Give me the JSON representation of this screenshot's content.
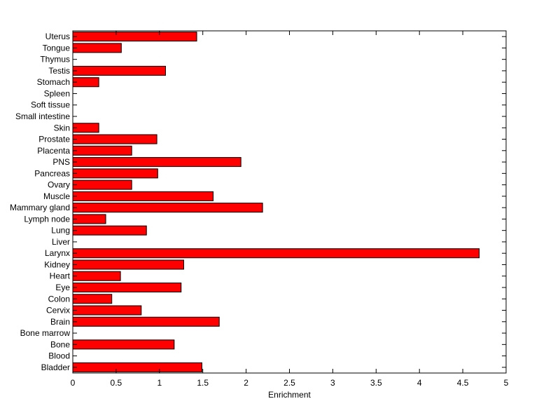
{
  "chart_data": {
    "type": "bar",
    "orientation": "horizontal",
    "title": "",
    "xlabel": "Enrichment",
    "ylabel": "",
    "xlim": [
      0,
      5
    ],
    "xticks": [
      0,
      0.5,
      1,
      1.5,
      2,
      2.5,
      3,
      3.5,
      4,
      4.5,
      5
    ],
    "xtick_labels": [
      "0",
      "0.5",
      "1",
      "1.5",
      "2",
      "2.5",
      "3",
      "3.5",
      "4",
      "4.5",
      "5"
    ],
    "grid": false,
    "bar_color": "#ff0000",
    "bar_edge_color": "#000000",
    "categories": [
      "Bladder",
      "Blood",
      "Bone",
      "Bone marrow",
      "Brain",
      "Cervix",
      "Colon",
      "Eye",
      "Heart",
      "Kidney",
      "Larynx",
      "Liver",
      "Lung",
      "Lymph node",
      "Mammary gland",
      "Muscle",
      "Ovary",
      "Pancreas",
      "PNS",
      "Placenta",
      "Prostate",
      "Skin",
      "Small intestine",
      "Soft tissue",
      "Spleen",
      "Stomach",
      "Testis",
      "Thymus",
      "Tongue",
      "Uterus"
    ],
    "values": [
      1.49,
      0,
      1.17,
      0,
      1.69,
      0.79,
      0.45,
      1.25,
      0.55,
      1.28,
      4.69,
      0,
      0.85,
      0.38,
      2.19,
      1.62,
      0.68,
      0.98,
      1.94,
      0.68,
      0.97,
      0.3,
      0,
      0,
      0,
      0.3,
      1.07,
      0,
      0.56,
      1.43
    ]
  }
}
